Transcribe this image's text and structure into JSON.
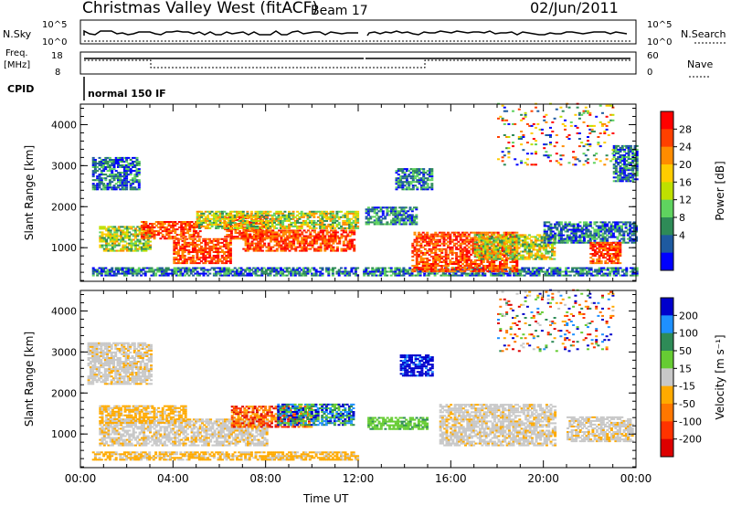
{
  "header": {
    "station": "Christmas Valley West (fitACF)",
    "beam": "Beam 17",
    "date": "02/Jun/2011"
  },
  "top_panels": {
    "nsky_label": "N.Sky",
    "nsky_ticks": [
      "10^5",
      "10^0"
    ],
    "nsearch_label": "N.Search",
    "nsearch_ticks": [
      "10^5",
      "10^0"
    ],
    "freq_label": [
      "Freq.",
      "[MHz]"
    ],
    "freq_ticks": [
      "18",
      "8"
    ],
    "nave_label": "Nave",
    "nave_ticks": [
      "60",
      "0"
    ],
    "cpid_label": "CPID",
    "cpid_value": "normal 150 IF"
  },
  "chart_data": [
    {
      "type": "heatmap",
      "panel": "power",
      "ylabel": "Slant Range [km]",
      "xlabel": "Time UT",
      "xlim": [
        0,
        24
      ],
      "ylim": [
        180,
        4500
      ],
      "yticks": [
        1000,
        2000,
        3000,
        4000
      ],
      "xticks": [
        "00:00",
        "04:00",
        "08:00",
        "12:00",
        "16:00",
        "20:00",
        "00:00"
      ],
      "colorbar": {
        "label": "Power [dB]",
        "ticks": [
          "28",
          "24",
          "20",
          "16",
          "12",
          "8",
          "4"
        ],
        "colors": [
          "#ff0000",
          "#ff4000",
          "#ff8c00",
          "#ffcc00",
          "#bfe000",
          "#5fd35f",
          "#2e8b57",
          "#1e5aa0",
          "#0000ff"
        ]
      },
      "regions": [
        {
          "t": [
            0.5,
            12.0
          ],
          "r": [
            300,
            500
          ],
          "level": "low"
        },
        {
          "t": [
            12.2,
            24.0
          ],
          "r": [
            300,
            500
          ],
          "level": "low"
        },
        {
          "t": [
            0.8,
            3.0
          ],
          "r": [
            900,
            1500
          ],
          "level": "mid"
        },
        {
          "t": [
            2.6,
            5.2
          ],
          "r": [
            1200,
            1650
          ],
          "level": "high"
        },
        {
          "t": [
            4.0,
            6.5
          ],
          "r": [
            600,
            1200
          ],
          "level": "high"
        },
        {
          "t": [
            6.2,
            8.0
          ],
          "r": [
            1200,
            1750
          ],
          "level": "high"
        },
        {
          "t": [
            7.0,
            11.8
          ],
          "r": [
            900,
            1400
          ],
          "level": "high"
        },
        {
          "t": [
            5.0,
            12.0
          ],
          "r": [
            1450,
            1900
          ],
          "level": "mid"
        },
        {
          "t": [
            0.5,
            2.5
          ],
          "r": [
            2400,
            3200
          ],
          "level": "low"
        },
        {
          "t": [
            13.6,
            15.2
          ],
          "r": [
            2400,
            2900
          ],
          "level": "low"
        },
        {
          "t": [
            12.3,
            14.5
          ],
          "r": [
            1550,
            2000
          ],
          "level": "low"
        },
        {
          "t": [
            14.3,
            18.8
          ],
          "r": [
            400,
            1350
          ],
          "level": "high"
        },
        {
          "t": [
            17.0,
            20.5
          ],
          "r": [
            700,
            1300
          ],
          "level": "mid"
        },
        {
          "t": [
            20.0,
            24.0
          ],
          "r": [
            1100,
            1600
          ],
          "level": "low"
        },
        {
          "t": [
            22.0,
            23.3
          ],
          "r": [
            600,
            1100
          ],
          "level": "high"
        },
        {
          "t": [
            23.0,
            24.0
          ],
          "r": [
            2600,
            3500
          ],
          "level": "low"
        },
        {
          "t": [
            18.0,
            23.0
          ],
          "r": [
            3000,
            4500
          ],
          "level": "sparse"
        }
      ]
    },
    {
      "type": "heatmap",
      "panel": "velocity",
      "ylabel": "Slant Range [km]",
      "xlabel": "Time UT",
      "xlim": [
        0,
        24
      ],
      "ylim": [
        180,
        4500
      ],
      "yticks": [
        1000,
        2000,
        3000,
        4000
      ],
      "xticks": [
        "00:00",
        "04:00",
        "08:00",
        "12:00",
        "16:00",
        "20:00",
        "00:00"
      ],
      "colorbar": {
        "label": "Velocity [m s⁻¹]",
        "ticks": [
          "200",
          "100",
          "50",
          "15",
          "-15",
          "-50",
          "-100",
          "-200"
        ],
        "colors": [
          "#0000cc",
          "#1e90ff",
          "#2e8b57",
          "#66cc33",
          "#c8c8c8",
          "#ffaa00",
          "#ff7700",
          "#ff3300",
          "#dd0000"
        ]
      },
      "regions": [
        {
          "t": [
            0.5,
            12.0
          ],
          "r": [
            350,
            550
          ],
          "level": "slow_neg"
        },
        {
          "t": [
            0.8,
            8.0
          ],
          "r": [
            700,
            1350
          ],
          "level": "grey"
        },
        {
          "t": [
            0.8,
            4.5
          ],
          "r": [
            1250,
            1700
          ],
          "level": "slow_neg"
        },
        {
          "t": [
            6.5,
            10.0
          ],
          "r": [
            1150,
            1650
          ],
          "level": "fast_neg"
        },
        {
          "t": [
            8.5,
            11.8
          ],
          "r": [
            1200,
            1700
          ],
          "level": "pos"
        },
        {
          "t": [
            0.3,
            3.0
          ],
          "r": [
            2200,
            3200
          ],
          "level": "grey"
        },
        {
          "t": [
            13.8,
            15.2
          ],
          "r": [
            2400,
            2900
          ],
          "level": "fast_pos"
        },
        {
          "t": [
            12.4,
            15.0
          ],
          "r": [
            1100,
            1400
          ],
          "level": "slow_pos"
        },
        {
          "t": [
            15.5,
            20.5
          ],
          "r": [
            700,
            1700
          ],
          "level": "grey"
        },
        {
          "t": [
            21.0,
            23.8
          ],
          "r": [
            800,
            1400
          ],
          "level": "grey"
        },
        {
          "t": [
            18.0,
            23.0
          ],
          "r": [
            3000,
            4500
          ],
          "level": "sparse"
        }
      ]
    }
  ]
}
